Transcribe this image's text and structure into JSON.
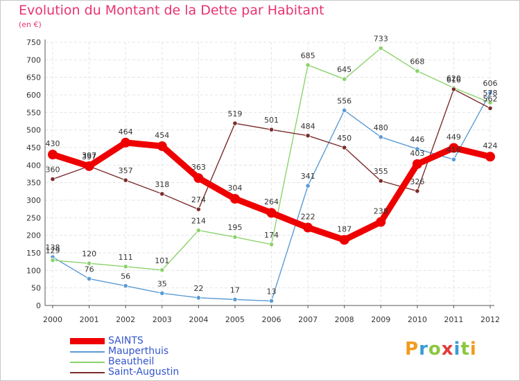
{
  "header": {
    "title": "Evolution du Montant de la Dette par Habitant",
    "unit": "(en €)"
  },
  "logo": {
    "letters": [
      "P",
      "r",
      "o",
      "x",
      "i",
      "t",
      "i"
    ],
    "colors": [
      "#f29b1d",
      "#3a9bd5",
      "#8cc63f",
      "#e23c3c",
      "#3a9bd5",
      "#8cc63f",
      "#f29b1d"
    ]
  },
  "chart_data": {
    "type": "line",
    "title": "Evolution du Montant de la Dette par Habitant",
    "ylabel": "(en €)",
    "xlabel": "",
    "x": [
      "2000",
      "2001",
      "2002",
      "2003",
      "2004",
      "2005",
      "2006",
      "2007",
      "2008",
      "2009",
      "2010",
      "2011",
      "2012"
    ],
    "ylim": [
      0,
      750
    ],
    "yticks": [
      0,
      50,
      100,
      150,
      200,
      250,
      300,
      350,
      400,
      450,
      500,
      550,
      600,
      650,
      700,
      750
    ],
    "grid": true,
    "legend_position": "bottom-left",
    "series": [
      {
        "name": "SAINTS",
        "color": "#ee0000",
        "values": [
          430,
          397,
          464,
          454,
          363,
          304,
          264,
          222,
          187,
          238,
          403,
          449,
          424
        ],
        "labels": [
          "430",
          "397",
          "464",
          "454",
          "363",
          "304",
          "264",
          "222",
          "187",
          "238",
          "403",
          "449",
          "424"
        ]
      },
      {
        "name": "Mauperthuis",
        "color": "#5b9bd5",
        "values": [
          138,
          76,
          56,
          35,
          22,
          17,
          13,
          341,
          556,
          480,
          446,
          416,
          606
        ],
        "labels": [
          "138",
          "76",
          "56",
          "35",
          "22",
          "17",
          "13",
          "341",
          "556",
          "480",
          "446",
          "416",
          "606"
        ]
      },
      {
        "name": "Beautheil",
        "color": "#8bd36b",
        "values": [
          129,
          120,
          111,
          101,
          214,
          195,
          174,
          685,
          645,
          733,
          668,
          620,
          578
        ],
        "labels": [
          "129",
          "120",
          "111",
          "101",
          "214",
          "195",
          "174",
          "685",
          "645",
          "733",
          "668",
          "620",
          "578"
        ]
      },
      {
        "name": "Saint-Augustin",
        "color": "#7b2c2c",
        "values": [
          360,
          397,
          357,
          318,
          274,
          519,
          501,
          484,
          450,
          355,
          326,
          616,
          562
        ],
        "labels": [
          "360",
          "397",
          "357",
          "318",
          "274",
          "519",
          "501",
          "484",
          "450",
          "355",
          "326",
          "616",
          "562"
        ]
      }
    ]
  }
}
